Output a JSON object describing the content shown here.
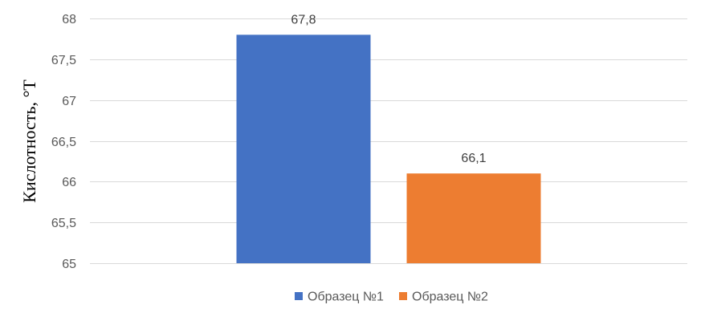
{
  "chart_data": {
    "type": "bar",
    "title": "",
    "xlabel": "",
    "ylabel": "Кислотность, °Т",
    "ylim": [
      65,
      68
    ],
    "yticks": [
      65,
      65.5,
      66,
      66.5,
      67,
      67.5,
      68
    ],
    "ytick_labels": [
      "65",
      "65,5",
      "66",
      "66,5",
      "67",
      "67,5",
      "68"
    ],
    "grid": true,
    "legend_position": "bottom",
    "series": [
      {
        "name": "Образец №1",
        "value": 67.8,
        "label": "67,8",
        "color": "#4472c4"
      },
      {
        "name": "Образец №2",
        "value": 66.1,
        "label": "66,1",
        "color": "#ed7d31"
      }
    ]
  }
}
